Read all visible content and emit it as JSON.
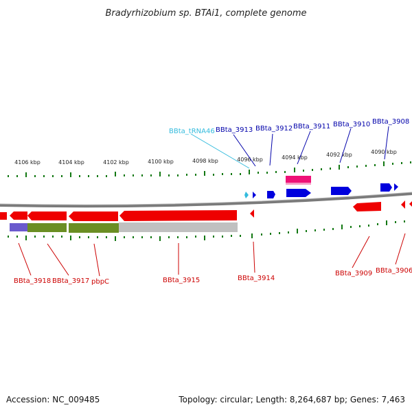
{
  "title": "Bradyrhizobium sp. BTAi1, complete genome",
  "footer": {
    "accession": "Accession: NC_009485",
    "summary": "Topology: circular; Length: 8,264,687 bp; Genes: 7,463"
  },
  "scale_labels": [
    "4106 kbp",
    "4104 kbp",
    "4102 kbp",
    "4100 kbp",
    "4098 kbp",
    "4096 kbp",
    "4094 kbp",
    "4092 kbp",
    "4090 kbp"
  ],
  "genes_top": [
    "BBta_tRNA46",
    "BBta_3913",
    "BBta_3912",
    "BBta_3911",
    "BBta_3910",
    "BBta_3908"
  ],
  "genes_bottom": [
    "BBta_3918",
    "BBta_3917",
    "pbpC",
    "BBta_3915",
    "BBta_3914",
    "BBta_3909",
    "BBta_3906"
  ],
  "colors": {
    "forward_gene": "#0000dd",
    "reverse_gene": "#ee0000",
    "trna": "#33bbdd",
    "backbone": "#808080",
    "tick": "#117711",
    "pink_feature": "#ee1177",
    "purple_bar": "#6a5acd",
    "olive_bar": "#6b8e23",
    "grey_bar": "#c0c0c0"
  }
}
